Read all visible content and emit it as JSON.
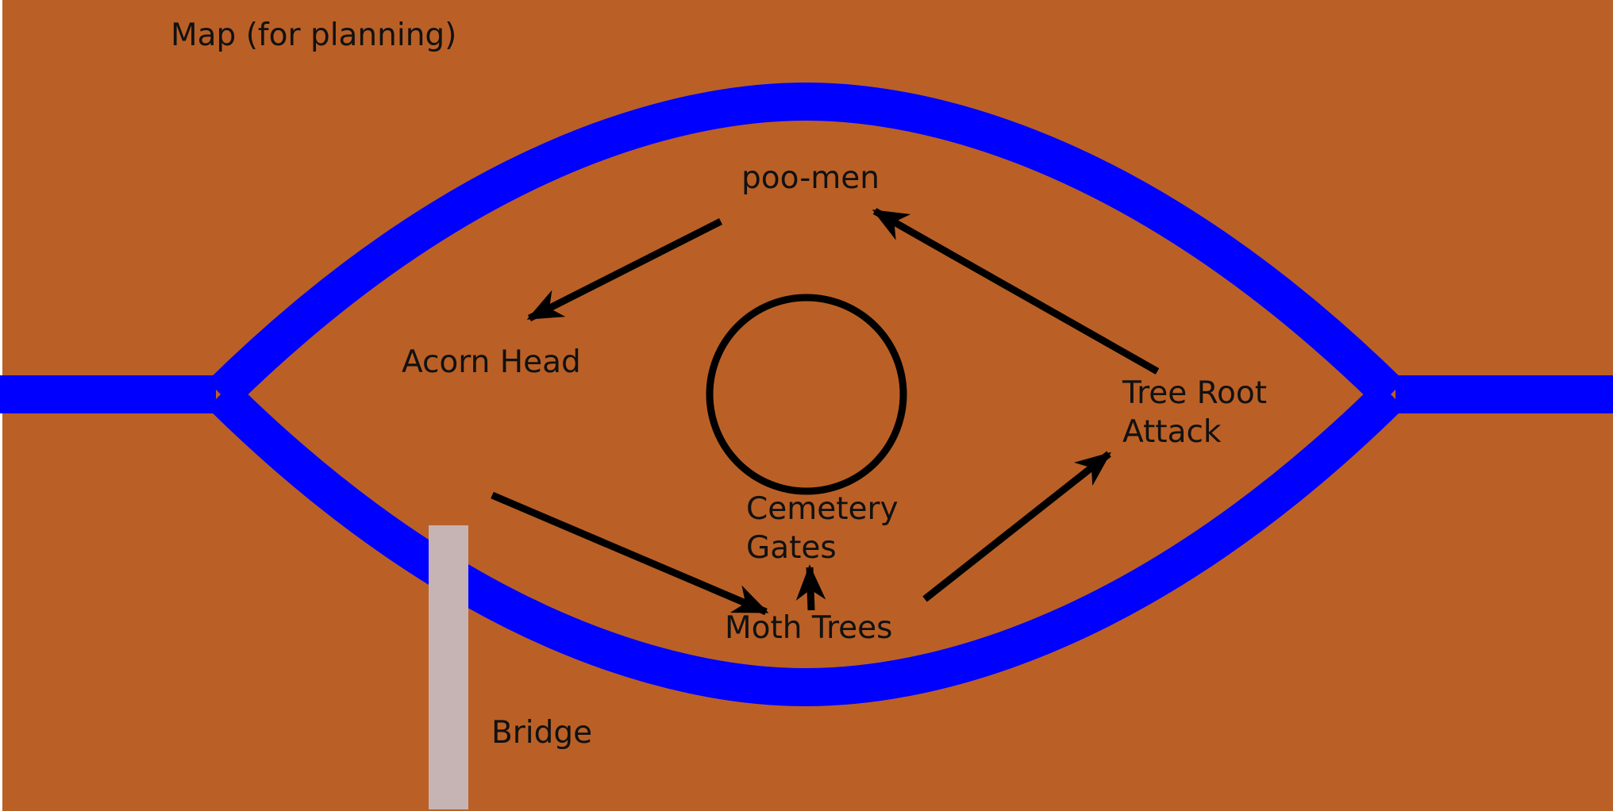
{
  "map": {
    "title": "Map (for planning)",
    "colors": {
      "ground": "#BA6026",
      "river": "#0000FF",
      "bridge": "#C6B3B3",
      "ink": "#000000"
    },
    "labels": {
      "poo_men": "poo-men",
      "acorn_head": "Acorn Head",
      "tree_root_line1": "Tree Root",
      "tree_root_line2": "Attack",
      "cemetery_line1": "Cemetery",
      "cemetery_line2": "Gates",
      "moth_trees": "Moth Trees",
      "bridge": "Bridge"
    }
  }
}
